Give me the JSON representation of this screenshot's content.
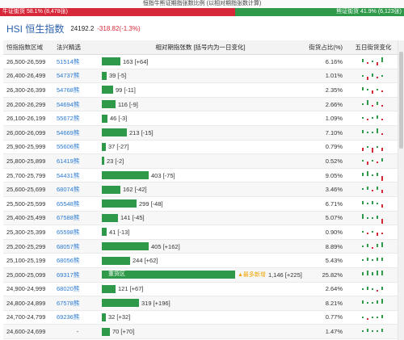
{
  "top_title": "恒指牛熊证期指张数比例 (以相对期指张数计算)",
  "ratio": {
    "bull_label": "牛证街货 58.1% (8,478张)",
    "bear_label": "熊证街货 41.9% (6,123张)",
    "bull_pct": 58.1,
    "colors": {
      "bull": "#d7283a",
      "bear": "#2e9a49"
    }
  },
  "header": {
    "title": "HSI 恒生指数",
    "value": "24192.2",
    "change": "-318.82(-1.3%)"
  },
  "columns": {
    "range": "恒指指数区域",
    "code": "法兴精选",
    "contracts": "相对期指张数 [括号内为一日变化]",
    "ratio": "街货占比(%)",
    "spark": "五日街货变化"
  },
  "max_contracts": 1146,
  "rows": [
    {
      "range": "26,500-26,599",
      "code": "51514熊",
      "contracts": 163,
      "label": "163 [+64]",
      "ratio": "6.16%",
      "spark": [
        2,
        -1,
        1,
        -2,
        3
      ]
    },
    {
      "range": "26,400-26,499",
      "code": "54737熊",
      "contracts": 39,
      "label": "39 [-5]",
      "ratio": "1.01%",
      "spark": [
        1,
        -2,
        2,
        -1,
        1
      ]
    },
    {
      "range": "26,300-26,399",
      "code": "54768熊",
      "contracts": 99,
      "label": "99 [-11]",
      "ratio": "2.35%",
      "spark": [
        2,
        1,
        -2,
        1,
        -1
      ]
    },
    {
      "range": "26,200-26,299",
      "code": "54694熊",
      "contracts": 116,
      "label": "116 [-9]",
      "ratio": "2.66%",
      "spark": [
        1,
        3,
        -1,
        2,
        -1
      ]
    },
    {
      "range": "26,100-26,199",
      "code": "55672熊",
      "contracts": 46,
      "label": "46 [-3]",
      "ratio": "1.09%",
      "spark": [
        1,
        -1,
        1,
        2,
        -1
      ]
    },
    {
      "range": "26,000-26,099",
      "code": "54669熊",
      "contracts": 213,
      "label": "213 [-15]",
      "ratio": "7.10%",
      "spark": [
        2,
        1,
        1,
        3,
        -1
      ]
    },
    {
      "range": "25,900-25,999",
      "code": "55606熊",
      "contracts": 37,
      "label": "37 [-27]",
      "ratio": "0.79%",
      "spark": [
        -2,
        1,
        -3,
        1,
        -2
      ]
    },
    {
      "range": "25,800-25,899",
      "code": "61419熊",
      "contracts": 23,
      "label": "23 [-2]",
      "ratio": "0.52%",
      "spark": [
        1,
        -2,
        1,
        -1,
        2
      ]
    },
    {
      "range": "25,700-25,799",
      "code": "54431熊",
      "contracts": 403,
      "label": "403 [-75]",
      "ratio": "9.05%",
      "spark": [
        2,
        3,
        1,
        2,
        -3
      ]
    },
    {
      "range": "25,600-25,699",
      "code": "68074熊",
      "contracts": 162,
      "label": "162 [-42]",
      "ratio": "3.46%",
      "spark": [
        1,
        2,
        -1,
        2,
        -2
      ]
    },
    {
      "range": "25,500-25,599",
      "code": "65548熊",
      "contracts": 299,
      "label": "299 [-48]",
      "ratio": "6.71%",
      "spark": [
        2,
        1,
        2,
        1,
        -2
      ]
    },
    {
      "range": "25,400-25,499",
      "code": "67588熊",
      "contracts": 141,
      "label": "141 [-45]",
      "ratio": "5.07%",
      "spark": [
        3,
        1,
        1,
        2,
        -3
      ]
    },
    {
      "range": "25,300-25,399",
      "code": "65598熊",
      "contracts": 41,
      "label": "41 [-13]",
      "ratio": "0.90%",
      "spark": [
        1,
        -1,
        1,
        -2,
        -1
      ]
    },
    {
      "range": "25,200-25,299",
      "code": "68057熊",
      "contracts": 405,
      "label": "405 [+162]",
      "ratio": "8.89%",
      "spark": [
        1,
        2,
        -1,
        2,
        3
      ]
    },
    {
      "range": "25,100-25,199",
      "code": "68056熊",
      "contracts": 244,
      "label": "244 [+62]",
      "ratio": "5.43%",
      "spark": [
        1,
        2,
        1,
        2,
        2
      ]
    },
    {
      "range": "25,000-25,099",
      "code": "69317熊",
      "contracts": 1146,
      "label": "1,146 [+225]",
      "ratio": "25.82%",
      "spark": [
        2,
        3,
        2,
        3,
        3
      ],
      "heavy": "重货区",
      "badge": "▲最多新增"
    },
    {
      "range": "24,900-24,999",
      "code": "68020熊",
      "contracts": 121,
      "label": "121 [+67]",
      "ratio": "2.64%",
      "spark": [
        1,
        2,
        1,
        -1,
        2
      ]
    },
    {
      "range": "24,800-24,899",
      "code": "67578熊",
      "contracts": 319,
      "label": "319 [+196]",
      "ratio": "8.21%",
      "spark": [
        2,
        1,
        1,
        2,
        3
      ]
    },
    {
      "range": "24,700-24,799",
      "code": "69236熊",
      "contracts": 32,
      "label": "32 [+32]",
      "ratio": "0.77%",
      "spark": [
        1,
        -1,
        1,
        1,
        2
      ]
    },
    {
      "range": "24,600-24,699",
      "code": "-",
      "contracts": 70,
      "label": "70 [+70]",
      "ratio": "1.47%",
      "spark": [
        1,
        2,
        1,
        1,
        2
      ]
    }
  ]
}
